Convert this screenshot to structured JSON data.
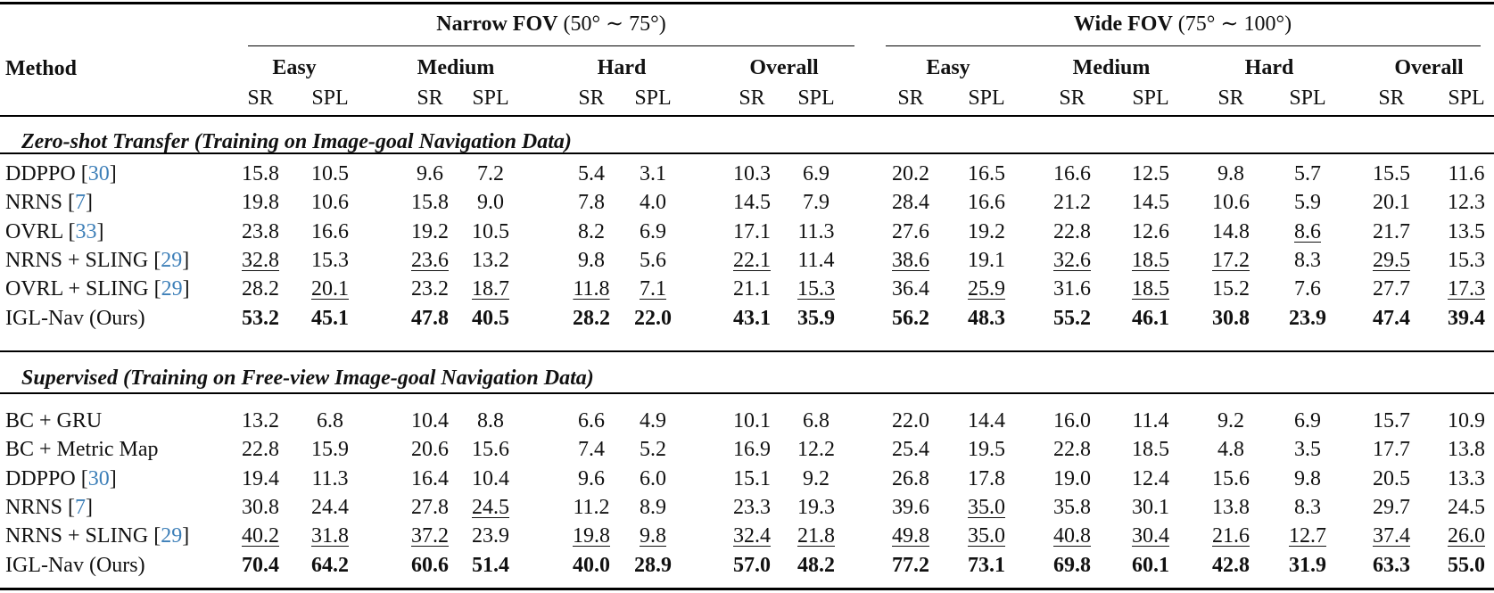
{
  "table": {
    "method_header": "Method",
    "fov_groups": [
      {
        "name": "Narrow FOV",
        "range": "(50° ∼ 75°)"
      },
      {
        "name": "Wide FOV",
        "range": "(75° ∼ 100°)"
      }
    ],
    "difficulty_headers": [
      "Easy",
      "Medium",
      "Hard",
      "Overall"
    ],
    "metric_headers": [
      "SR",
      "SPL"
    ],
    "sections": [
      {
        "title": "Zero-shot Transfer (Training on Image-goal Navigation Data)",
        "rows": [
          {
            "method": "DDPPO",
            "cite": "30",
            "values": [
              "15.8",
              "10.5",
              "9.6",
              "7.2",
              "5.4",
              "3.1",
              "10.3",
              "6.9",
              "20.2",
              "16.5",
              "16.6",
              "12.5",
              "9.8",
              "5.7",
              "15.5",
              "11.6"
            ],
            "underline": [],
            "bold": false
          },
          {
            "method": "NRNS",
            "cite": "7",
            "values": [
              "19.8",
              "10.6",
              "15.8",
              "9.0",
              "7.8",
              "4.0",
              "14.5",
              "7.9",
              "28.4",
              "16.6",
              "21.2",
              "14.5",
              "10.6",
              "5.9",
              "20.1",
              "12.3"
            ],
            "underline": [],
            "bold": false
          },
          {
            "method": "OVRL",
            "cite": "33",
            "values": [
              "23.8",
              "16.6",
              "19.2",
              "10.5",
              "8.2",
              "6.9",
              "17.1",
              "11.3",
              "27.6",
              "19.2",
              "22.8",
              "12.6",
              "14.8",
              "8.6",
              "21.7",
              "13.5"
            ],
            "underline": [
              13
            ],
            "bold": false
          },
          {
            "method": "NRNS + SLING",
            "cite": "29",
            "values": [
              "32.8",
              "15.3",
              "23.6",
              "13.2",
              "9.8",
              "5.6",
              "22.1",
              "11.4",
              "38.6",
              "19.1",
              "32.6",
              "18.5",
              "17.2",
              "8.3",
              "29.5",
              "15.3"
            ],
            "underline": [
              0,
              2,
              6,
              8,
              10,
              11,
              12,
              14
            ],
            "bold": false
          },
          {
            "method": "OVRL + SLING",
            "cite": "29",
            "values": [
              "28.2",
              "20.1",
              "23.2",
              "18.7",
              "11.8",
              "7.1",
              "21.1",
              "15.3",
              "36.4",
              "25.9",
              "31.6",
              "18.5",
              "15.2",
              "7.6",
              "27.7",
              "17.3"
            ],
            "underline": [
              1,
              3,
              4,
              5,
              7,
              9,
              11,
              15
            ],
            "bold": false
          },
          {
            "method": "IGL-Nav (Ours)",
            "cite": "",
            "values": [
              "53.2",
              "45.1",
              "47.8",
              "40.5",
              "28.2",
              "22.0",
              "43.1",
              "35.9",
              "56.2",
              "48.3",
              "55.2",
              "46.1",
              "30.8",
              "23.9",
              "47.4",
              "39.4"
            ],
            "underline": [],
            "bold": true
          }
        ]
      },
      {
        "title": "Supervised (Training on Free-view Image-goal Navigation Data)",
        "rows": [
          {
            "method": "BC + GRU",
            "cite": "",
            "values": [
              "13.2",
              "6.8",
              "10.4",
              "8.8",
              "6.6",
              "4.9",
              "10.1",
              "6.8",
              "22.0",
              "14.4",
              "16.0",
              "11.4",
              "9.2",
              "6.9",
              "15.7",
              "10.9"
            ],
            "underline": [],
            "bold": false
          },
          {
            "method": "BC + Metric Map",
            "cite": "",
            "values": [
              "22.8",
              "15.9",
              "20.6",
              "15.6",
              "7.4",
              "5.2",
              "16.9",
              "12.2",
              "25.4",
              "19.5",
              "22.8",
              "18.5",
              "4.8",
              "3.5",
              "17.7",
              "13.8"
            ],
            "underline": [],
            "bold": false
          },
          {
            "method": "DDPPO",
            "cite": "30",
            "values": [
              "19.4",
              "11.3",
              "16.4",
              "10.4",
              "9.6",
              "6.0",
              "15.1",
              "9.2",
              "26.8",
              "17.8",
              "19.0",
              "12.4",
              "15.6",
              "9.8",
              "20.5",
              "13.3"
            ],
            "underline": [],
            "bold": false
          },
          {
            "method": "NRNS",
            "cite": "7",
            "values": [
              "30.8",
              "24.4",
              "27.8",
              "24.5",
              "11.2",
              "8.9",
              "23.3",
              "19.3",
              "39.6",
              "35.0",
              "35.8",
              "30.1",
              "13.8",
              "8.3",
              "29.7",
              "24.5"
            ],
            "underline": [
              3,
              9
            ],
            "bold": false
          },
          {
            "method": "NRNS + SLING",
            "cite": "29",
            "values": [
              "40.2",
              "31.8",
              "37.2",
              "23.9",
              "19.8",
              "9.8",
              "32.4",
              "21.8",
              "49.8",
              "35.0",
              "40.8",
              "30.4",
              "21.6",
              "12.7",
              "37.4",
              "26.0"
            ],
            "underline": [
              0,
              1,
              2,
              4,
              5,
              6,
              7,
              8,
              9,
              10,
              11,
              12,
              13,
              14,
              15
            ],
            "bold": false
          },
          {
            "method": "IGL-Nav (Ours)",
            "cite": "",
            "values": [
              "70.4",
              "64.2",
              "60.6",
              "51.4",
              "40.0",
              "28.9",
              "57.0",
              "48.2",
              "77.2",
              "73.1",
              "69.8",
              "60.1",
              "42.8",
              "31.9",
              "63.3",
              "55.0"
            ],
            "underline": [],
            "bold": true
          }
        ]
      }
    ]
  },
  "colors": {
    "text": "#111111",
    "citation": "#3d7fb8",
    "rule": "#000000"
  }
}
